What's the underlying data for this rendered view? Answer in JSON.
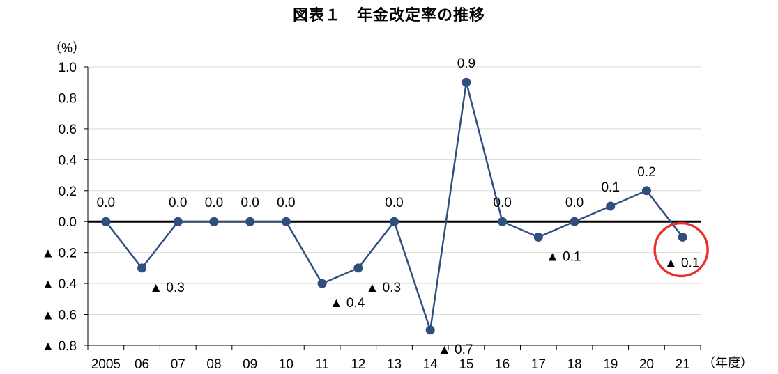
{
  "chart_data": {
    "type": "line",
    "title": "図表１　年金改定率の推移",
    "y_unit_label": "（%）",
    "x_unit_label": "（年度）",
    "categories": [
      "2005",
      "06",
      "07",
      "08",
      "09",
      "10",
      "11",
      "12",
      "13",
      "14",
      "15",
      "16",
      "17",
      "18",
      "19",
      "20",
      "21"
    ],
    "series": [
      {
        "values": [
          0.0,
          -0.3,
          0.0,
          0.0,
          0.0,
          0.0,
          -0.4,
          -0.3,
          0.0,
          -0.7,
          0.9,
          0.0,
          -0.1,
          0.0,
          0.1,
          0.2,
          -0.1
        ]
      }
    ],
    "data_labels": [
      "0.0",
      "▲ 0.3",
      "0.0",
      "0.0",
      "0.0",
      "0.0",
      "▲ 0.4",
      "▲ 0.3",
      "0.0",
      "▲ 0.7",
      "0.9",
      "0.0",
      "▲ 0.1",
      "0.0",
      "0.1",
      "0.2",
      "▲ 0.1"
    ],
    "ylim": [
      -0.8,
      1.0
    ],
    "y_ticks": [
      1.0,
      0.8,
      0.6,
      0.4,
      0.2,
      0.0,
      -0.2,
      -0.4,
      -0.6,
      -0.8
    ],
    "y_tick_labels": [
      "1.0",
      "0.8",
      "0.6",
      "0.4",
      "0.2",
      "0.0",
      "▲ 0.2",
      "▲ 0.4",
      "▲ 0.6",
      "▲ 0.8"
    ],
    "grid": true,
    "highlight_index": 16,
    "colors": {
      "line": "#2f4f7f",
      "marker": "#2f4f7f",
      "grid": "#d9d9d9",
      "axis": "#000000",
      "highlight": "#e8322c"
    }
  }
}
